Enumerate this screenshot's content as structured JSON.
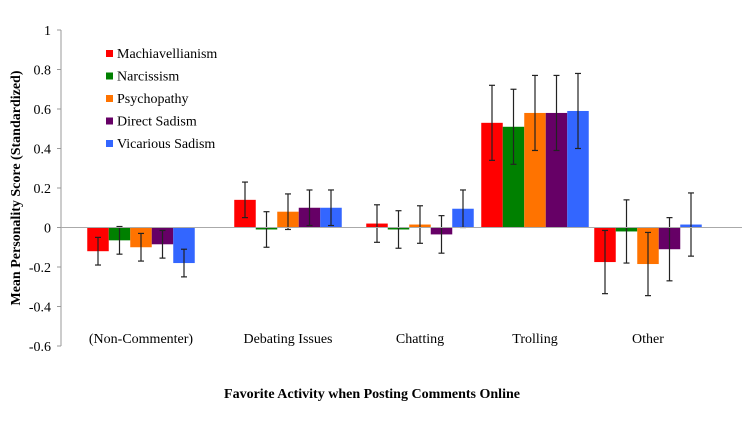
{
  "chart_data": {
    "type": "bar",
    "title": "",
    "xlabel": "Favorite Activity when Posting Comments Online",
    "ylabel": "Mean Personality Score (Standardized)",
    "ylim": [
      -0.6,
      1
    ],
    "yticks": [
      1,
      0.8,
      0.6,
      0.4,
      0.2,
      0,
      -0.2,
      -0.4,
      -0.6
    ],
    "ytick_labels": [
      "1",
      "0.8",
      "0.6",
      "0.4",
      "0.2",
      "0",
      "-0.2",
      "-0.4",
      "-0.6"
    ],
    "legend_position": "top-left",
    "categories": [
      "(Non-Commenter)",
      "Debating Issues",
      "Chatting",
      "Trolling",
      "Other"
    ],
    "series": [
      {
        "name": "Machiavellianism",
        "color": "#ff0000",
        "values": [
          -0.12,
          0.14,
          0.02,
          0.53,
          -0.175
        ],
        "errors": [
          0.07,
          0.09,
          0.095,
          0.19,
          0.16
        ]
      },
      {
        "name": "Narcissism",
        "color": "#008000",
        "values": [
          -0.065,
          -0.01,
          -0.01,
          0.51,
          -0.02
        ],
        "errors": [
          0.07,
          0.09,
          0.095,
          0.19,
          0.16
        ]
      },
      {
        "name": "Psychopathy",
        "color": "#ff7300",
        "values": [
          -0.1,
          0.08,
          0.015,
          0.58,
          -0.185
        ],
        "errors": [
          0.07,
          0.09,
          0.095,
          0.19,
          0.16
        ]
      },
      {
        "name": "Direct Sadism",
        "color": "#660066",
        "values": [
          -0.085,
          0.1,
          -0.035,
          0.58,
          -0.11
        ],
        "errors": [
          0.07,
          0.09,
          0.095,
          0.19,
          0.16
        ]
      },
      {
        "name": "Vicarious Sadism",
        "color": "#3366ff",
        "values": [
          -0.18,
          0.1,
          0.095,
          0.59,
          0.015
        ],
        "errors": [
          0.07,
          0.09,
          0.095,
          0.19,
          0.16
        ]
      }
    ]
  }
}
